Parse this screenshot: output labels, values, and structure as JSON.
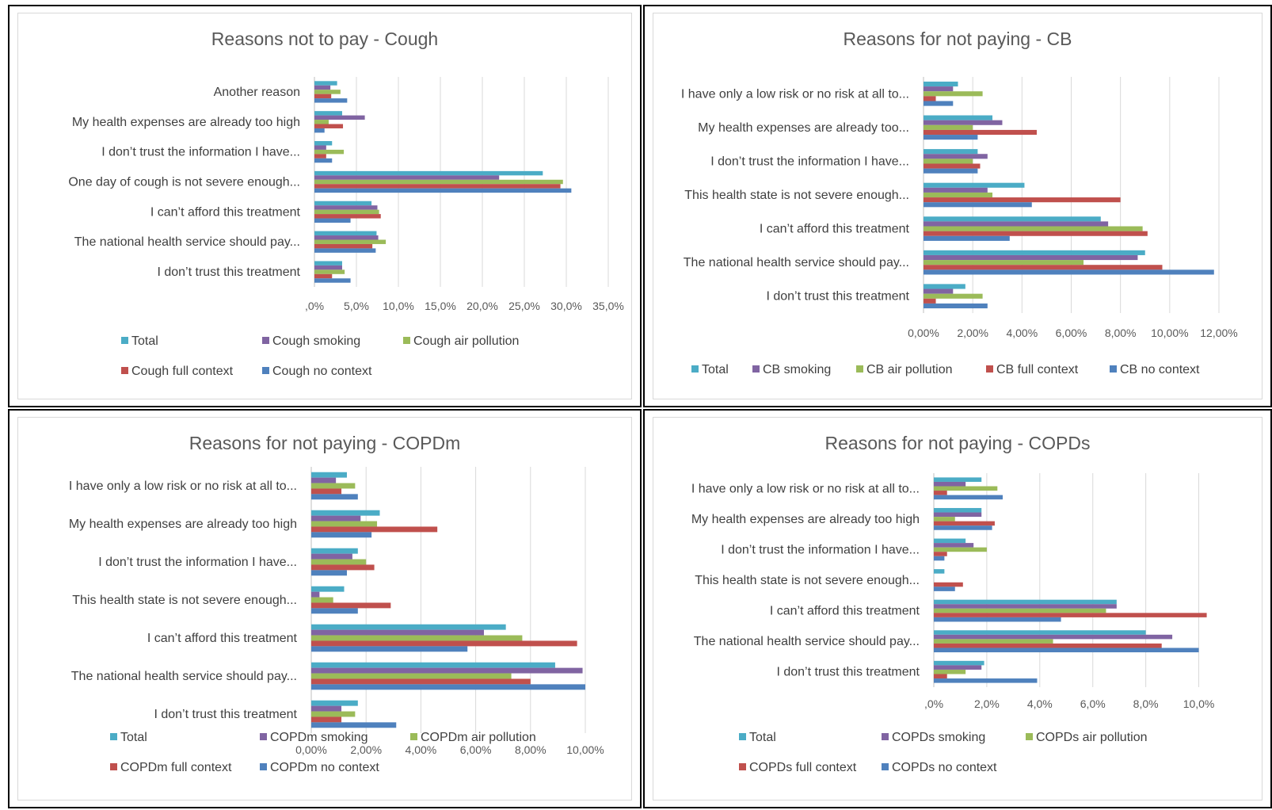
{
  "colors": {
    "total": "#4BACC6",
    "smoking": "#8064A2",
    "air_pollution": "#9BBB59",
    "full_context": "#C0504D",
    "no_context": "#4F81BD"
  },
  "chart_data": [
    {
      "type": "bar",
      "orientation": "horizontal",
      "title": "Reasons not to pay - Cough",
      "categories": [
        "Another reason",
        "My health expenses are already too high",
        "I don’t trust the information I have...",
        "One day of cough is not severe enough...",
        "I can’t afford this treatment",
        "The national health service should pay...",
        "I don’t trust this treatment"
      ],
      "xlim": [
        0,
        35
      ],
      "x_ticks": [
        0,
        5,
        10,
        15,
        20,
        25,
        30,
        35
      ],
      "x_tick_labels": [
        ",0%",
        "5,0%",
        "10,0%",
        "15,0%",
        "20,0%",
        "25,0%",
        "30,0%",
        "35,0%"
      ],
      "grid": true,
      "legend_position": "bottom",
      "series": [
        {
          "name": "Total",
          "color_key": "total",
          "values": [
            2.7,
            3.3,
            2.1,
            27.2,
            6.8,
            7.4,
            3.3
          ]
        },
        {
          "name": "Cough smoking",
          "color_key": "smoking",
          "values": [
            1.9,
            6.0,
            1.4,
            22.0,
            7.5,
            7.6,
            3.3
          ]
        },
        {
          "name": "Cough air pollution",
          "color_key": "air_pollution",
          "values": [
            3.1,
            1.7,
            3.5,
            29.6,
            7.7,
            8.5,
            3.6
          ]
        },
        {
          "name": "Cough full context",
          "color_key": "full_context",
          "values": [
            2.0,
            3.4,
            1.4,
            29.3,
            7.9,
            6.9,
            2.1
          ]
        },
        {
          "name": "Cough no context",
          "color_key": "no_context",
          "values": [
            3.9,
            1.2,
            2.1,
            30.6,
            4.3,
            7.3,
            4.3
          ]
        }
      ]
    },
    {
      "type": "bar",
      "orientation": "horizontal",
      "title": "Reasons for not paying - CB",
      "categories": [
        "I have only a low risk or no risk at all to...",
        "My health expenses are already too...",
        "I don’t trust the information I have...",
        "This health state is not severe enough...",
        "I can’t afford this treatment",
        "The national health service should pay...",
        "I don’t trust this treatment"
      ],
      "xlim": [
        0,
        12
      ],
      "x_ticks": [
        0,
        2,
        4,
        6,
        8,
        10,
        12
      ],
      "x_tick_labels": [
        "0,00%",
        "2,00%",
        "4,00%",
        "6,00%",
        "8,00%",
        "10,00%",
        "12,00%"
      ],
      "grid": true,
      "legend_position": "bottom",
      "series": [
        {
          "name": "Total",
          "color_key": "total",
          "values": [
            1.4,
            2.8,
            2.2,
            4.1,
            7.2,
            9.0,
            1.7
          ]
        },
        {
          "name": "CB smoking",
          "color_key": "smoking",
          "values": [
            1.2,
            3.2,
            2.6,
            2.6,
            7.5,
            8.7,
            1.2
          ]
        },
        {
          "name": "CB air pollution",
          "color_key": "air_pollution",
          "values": [
            2.4,
            2.0,
            2.0,
            2.8,
            8.9,
            6.5,
            2.4
          ]
        },
        {
          "name": "CB full context",
          "color_key": "full_context",
          "values": [
            0.5,
            4.6,
            2.3,
            8.0,
            9.1,
            9.7,
            0.5
          ]
        },
        {
          "name": "CB no context",
          "color_key": "no_context",
          "values": [
            1.2,
            2.2,
            2.2,
            4.4,
            3.5,
            11.8,
            2.6
          ]
        }
      ]
    },
    {
      "type": "bar",
      "orientation": "horizontal",
      "title": "Reasons for not paying - COPDm",
      "categories": [
        "I have only a low risk or no risk at all to...",
        "My health expenses are already too high",
        "I don’t trust the information I have...",
        "This health state is not severe enough...",
        "I can’t afford this treatment",
        "The national health service should pay...",
        "I don’t trust this treatment"
      ],
      "xlim": [
        0,
        10
      ],
      "x_ticks": [
        0,
        2,
        4,
        6,
        8,
        10
      ],
      "x_tick_labels": [
        "0,00%",
        "2,00%",
        "4,00%",
        "6,00%",
        "8,00%",
        "10,00%"
      ],
      "grid": true,
      "legend_position": "bottom",
      "series": [
        {
          "name": "Total",
          "color_key": "total",
          "values": [
            1.3,
            2.5,
            1.7,
            1.2,
            7.1,
            8.9,
            1.7
          ]
        },
        {
          "name": "COPDm smoking",
          "color_key": "smoking",
          "values": [
            0.9,
            1.8,
            1.5,
            0.3,
            6.3,
            9.9,
            1.1
          ]
        },
        {
          "name": "COPDm air pollution",
          "color_key": "air_pollution",
          "values": [
            1.6,
            2.4,
            2.0,
            0.8,
            7.7,
            7.3,
            1.6
          ]
        },
        {
          "name": "COPDm full context",
          "color_key": "full_context",
          "values": [
            1.1,
            4.6,
            2.3,
            2.9,
            9.7,
            8.0,
            1.1
          ]
        },
        {
          "name": "COPDm no context",
          "color_key": "no_context",
          "values": [
            1.7,
            2.2,
            1.3,
            1.7,
            5.7,
            10.0,
            3.1
          ]
        }
      ]
    },
    {
      "type": "bar",
      "orientation": "horizontal",
      "title": "Reasons for not paying - COPDs",
      "categories": [
        "I have only a low risk or no risk at all to...",
        "My health expenses are already too high",
        "I don’t trust the information I have...",
        "This health state is not severe enough...",
        "I can’t afford this treatment",
        "The national health service should pay...",
        "I don’t trust this treatment"
      ],
      "xlim": [
        0,
        11
      ],
      "x_ticks": [
        0,
        2,
        4,
        6,
        8,
        10
      ],
      "x_tick_labels": [
        ",0%",
        "2,0%",
        "4,0%",
        "6,0%",
        "8,0%",
        "10,0%"
      ],
      "grid": true,
      "legend_position": "bottom",
      "series": [
        {
          "name": "Total",
          "color_key": "total",
          "values": [
            1.8,
            1.8,
            1.2,
            0.4,
            6.9,
            8.0,
            1.9
          ]
        },
        {
          "name": "COPDs smoking",
          "color_key": "smoking",
          "values": [
            1.2,
            1.8,
            1.5,
            0.0,
            6.9,
            9.0,
            1.8
          ]
        },
        {
          "name": "COPDs air pollution",
          "color_key": "air_pollution",
          "values": [
            2.4,
            0.8,
            2.0,
            0.0,
            6.5,
            4.5,
            1.2
          ]
        },
        {
          "name": "COPDs full context",
          "color_key": "full_context",
          "values": [
            0.5,
            2.3,
            0.5,
            1.1,
            10.3,
            8.6,
            0.5
          ]
        },
        {
          "name": "COPDs no context",
          "color_key": "no_context",
          "values": [
            2.6,
            2.2,
            0.4,
            0.8,
            4.8,
            10.0,
            3.9
          ]
        }
      ]
    }
  ]
}
